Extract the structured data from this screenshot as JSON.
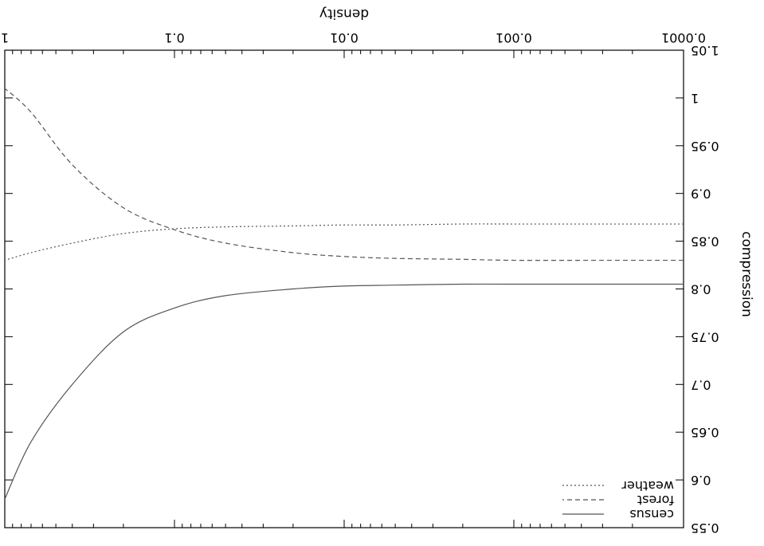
{
  "chart_data": {
    "type": "line",
    "orientation_note_visible": false,
    "xlabel": "density",
    "ylabel": "compression",
    "x_scale": "log",
    "xlim": [
      0.0001,
      1
    ],
    "ylim": [
      0.55,
      1.05
    ],
    "x_ticks": [
      {
        "value": 0.0001,
        "label": "0.0001"
      },
      {
        "value": 0.001,
        "label": "0.001"
      },
      {
        "value": 0.01,
        "label": "0.01"
      },
      {
        "value": 0.1,
        "label": "0.1"
      },
      {
        "value": 1,
        "label": "1"
      }
    ],
    "y_ticks": [
      {
        "value": 0.55,
        "label": "0.55"
      },
      {
        "value": 0.6,
        "label": "0.6"
      },
      {
        "value": 0.65,
        "label": "0.65"
      },
      {
        "value": 0.7,
        "label": "0.7"
      },
      {
        "value": 0.75,
        "label": "0.75"
      },
      {
        "value": 0.8,
        "label": "0.8"
      },
      {
        "value": 0.85,
        "label": "0.85"
      },
      {
        "value": 0.9,
        "label": "0.9"
      },
      {
        "value": 0.95,
        "label": "0.95"
      },
      {
        "value": 1,
        "label": "1"
      },
      {
        "value": 1.05,
        "label": "1.05"
      }
    ],
    "grid": false,
    "legend_position": "bottom-left",
    "series": [
      {
        "name": "census",
        "style": "solid",
        "color": "#555555",
        "x": [
          0.0001,
          0.0003,
          0.001,
          0.002,
          0.005,
          0.01,
          0.02,
          0.05,
          0.1,
          0.2,
          0.4,
          0.7,
          1
        ],
        "y": [
          0.805,
          0.805,
          0.805,
          0.805,
          0.804,
          0.803,
          0.8,
          0.793,
          0.78,
          0.755,
          0.7,
          0.64,
          0.58
        ]
      },
      {
        "name": "forest",
        "style": "dashed",
        "color": "#555555",
        "x": [
          0.0001,
          0.0003,
          0.001,
          0.002,
          0.005,
          0.01,
          0.02,
          0.05,
          0.1,
          0.2,
          0.4,
          0.7,
          1
        ],
        "y": [
          0.83,
          0.83,
          0.83,
          0.831,
          0.832,
          0.834,
          0.838,
          0.848,
          0.862,
          0.885,
          0.93,
          0.985,
          1.01
        ]
      },
      {
        "name": "weather",
        "style": "dotted",
        "color": "#555555",
        "x": [
          0.0001,
          0.0003,
          0.001,
          0.002,
          0.005,
          0.01,
          0.02,
          0.05,
          0.1,
          0.2,
          0.4,
          0.7,
          1
        ],
        "y": [
          0.868,
          0.868,
          0.868,
          0.868,
          0.867,
          0.867,
          0.866,
          0.865,
          0.863,
          0.858,
          0.848,
          0.838,
          0.83
        ]
      }
    ]
  }
}
